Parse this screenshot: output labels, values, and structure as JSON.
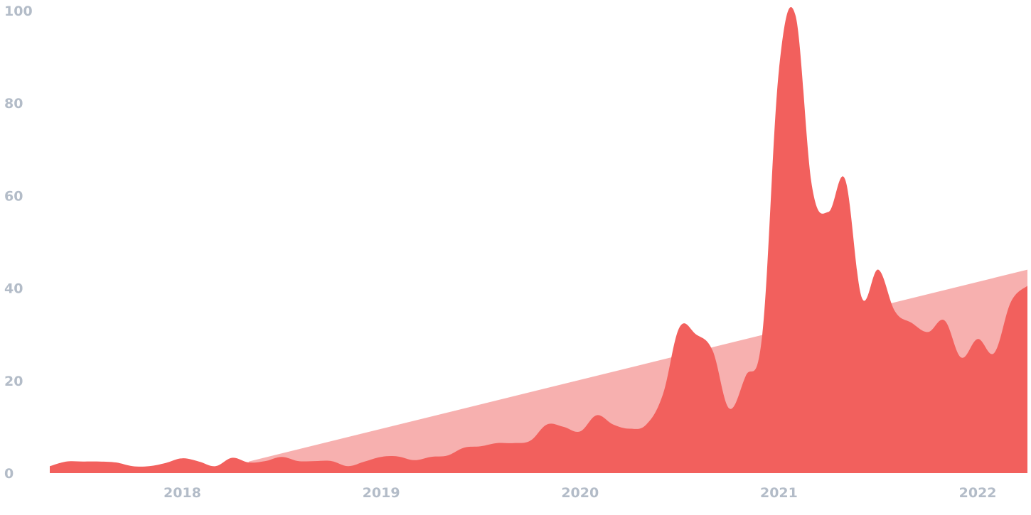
{
  "chart_data": {
    "type": "area",
    "title": "",
    "xlabel": "",
    "ylabel": "",
    "ylim": [
      0,
      100
    ],
    "xlim": [
      "2017-05",
      "2022-04"
    ],
    "grid": false,
    "y_ticks": [
      "0",
      "20",
      "40",
      "60",
      "80",
      "100"
    ],
    "x_ticks": [
      "2018",
      "2019",
      "2020",
      "2021",
      "2022"
    ],
    "x_tick_dates": [
      "2018-01",
      "2019-01",
      "2020-01",
      "2021-01",
      "2022-01"
    ],
    "series": [
      {
        "kind": "trend",
        "color": "#f7b0af",
        "points": [
          [
            "2018-05",
            2.5
          ],
          [
            "2022-04",
            44
          ]
        ]
      },
      {
        "kind": "interest",
        "color": "#f2605d",
        "points": [
          [
            "2017-05",
            1.5
          ],
          [
            "2017-06",
            2.5
          ],
          [
            "2017-07",
            2.5
          ],
          [
            "2017-08",
            2.5
          ],
          [
            "2017-09",
            2.3
          ],
          [
            "2017-10",
            1.5
          ],
          [
            "2017-11",
            1.5
          ],
          [
            "2017-12",
            2.2
          ],
          [
            "2018-01",
            3.2
          ],
          [
            "2018-02",
            2.5
          ],
          [
            "2018-03",
            1.5
          ],
          [
            "2018-04",
            3.3
          ],
          [
            "2018-05",
            2.3
          ],
          [
            "2018-06",
            2.6
          ],
          [
            "2018-07",
            3.5
          ],
          [
            "2018-08",
            2.6
          ],
          [
            "2018-09",
            2.6
          ],
          [
            "2018-10",
            2.6
          ],
          [
            "2018-11",
            1.5
          ],
          [
            "2018-12",
            2.5
          ],
          [
            "2019-01",
            3.5
          ],
          [
            "2019-02",
            3.6
          ],
          [
            "2019-03",
            2.8
          ],
          [
            "2019-04",
            3.5
          ],
          [
            "2019-05",
            3.8
          ],
          [
            "2019-06",
            5.5
          ],
          [
            "2019-07",
            5.8
          ],
          [
            "2019-08",
            6.5
          ],
          [
            "2019-09",
            6.5
          ],
          [
            "2019-10",
            7.0
          ],
          [
            "2019-11",
            10.5
          ],
          [
            "2019-12",
            10.0
          ],
          [
            "2020-01",
            9.0
          ],
          [
            "2020-02",
            12.5
          ],
          [
            "2020-03",
            10.5
          ],
          [
            "2020-04",
            9.6
          ],
          [
            "2020-05",
            10.5
          ],
          [
            "2020-06",
            17.0
          ],
          [
            "2020-07",
            31.5
          ],
          [
            "2020-08",
            30.0
          ],
          [
            "2020-09",
            26.5
          ],
          [
            "2020-10",
            14.0
          ],
          [
            "2020-11",
            21.0
          ],
          [
            "2020-12",
            30.0
          ],
          [
            "2021-01",
            87.0
          ],
          [
            "2021-02",
            99.0
          ],
          [
            "2021-03",
            62.0
          ],
          [
            "2021-04",
            56.5
          ],
          [
            "2021-05",
            63.5
          ],
          [
            "2021-06",
            38.0
          ],
          [
            "2021-07",
            44.0
          ],
          [
            "2021-08",
            35.0
          ],
          [
            "2021-09",
            32.5
          ],
          [
            "2021-10",
            30.5
          ],
          [
            "2021-11",
            33.0
          ],
          [
            "2021-12",
            25.0
          ],
          [
            "2022-01",
            29.0
          ],
          [
            "2022-02",
            26.0
          ],
          [
            "2022-03",
            37.0
          ],
          [
            "2022-04",
            40.5
          ]
        ]
      }
    ]
  }
}
